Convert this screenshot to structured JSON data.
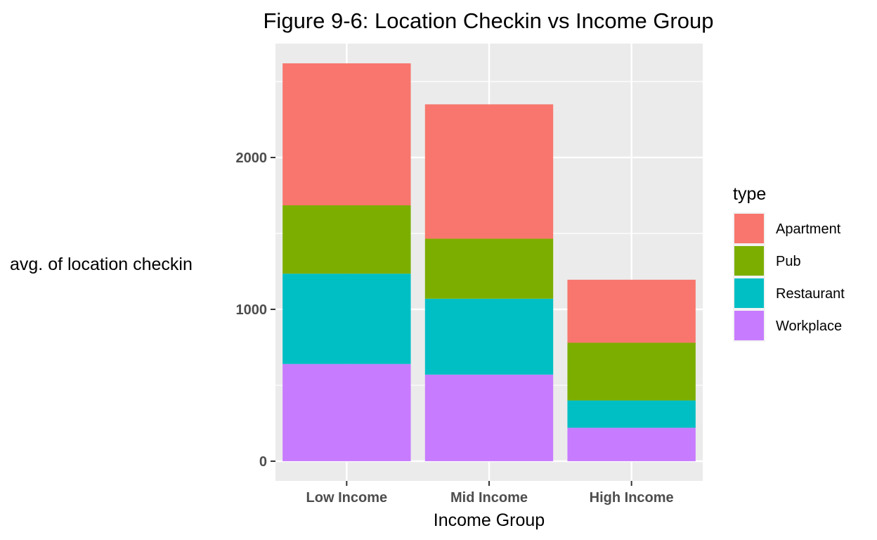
{
  "chart_data": {
    "type": "bar",
    "stacked": true,
    "title": "Figure 9-6: Location Checkin vs Income Group",
    "xlabel": "Income Group",
    "ylabel": "avg. of location checkin",
    "categories": [
      "Low Income",
      "Mid Income",
      "High Income"
    ],
    "ylim": [
      -130,
      2750
    ],
    "yticks": [
      0,
      1000,
      2000
    ],
    "yminor": [
      500,
      1500,
      2500
    ],
    "grid": true,
    "legend": {
      "title": "type",
      "position": "right"
    },
    "series": [
      {
        "name": "Workplace",
        "color": "#C77CFF",
        "values": [
          640,
          570,
          220
        ]
      },
      {
        "name": "Restaurant",
        "color": "#00BFC4",
        "values": [
          595,
          500,
          180
        ]
      },
      {
        "name": "Pub",
        "color": "#7CAE00",
        "values": [
          450,
          395,
          380
        ]
      },
      {
        "name": "Apartment",
        "color": "#F8766D",
        "values": [
          935,
          885,
          415
        ]
      }
    ],
    "legend_order": [
      "Apartment",
      "Pub",
      "Restaurant",
      "Workplace"
    ]
  }
}
